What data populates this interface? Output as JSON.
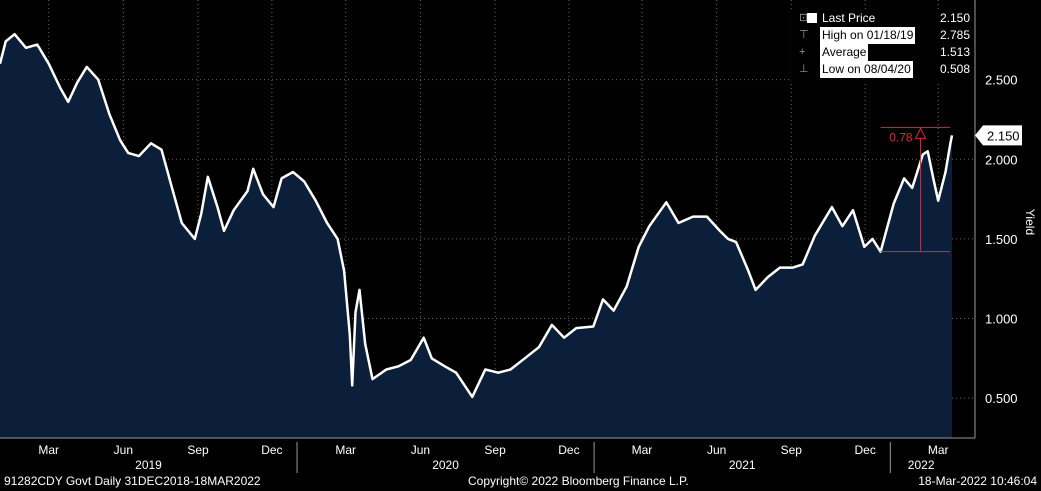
{
  "chart_data": {
    "type": "area",
    "ylabel": "Yield",
    "ylim": [
      0.25,
      3.0
    ],
    "yticks": [
      "0.500",
      "1.000",
      "1.500",
      "2.000",
      "2.500"
    ],
    "x_month_labels": [
      "Mar",
      "Jun",
      "Sep",
      "Dec",
      "Mar",
      "Jun",
      "Sep",
      "Dec",
      "Mar",
      "Jun",
      "Sep",
      "Dec",
      "Mar"
    ],
    "year_labels": [
      "2019",
      "2020",
      "2021",
      "2022"
    ],
    "x_start": "2018-12-31",
    "x_end": "2022-03-18",
    "series": [
      {
        "points": [
          [
            "2018-12-31",
            2.6
          ],
          [
            "2019-01-07",
            2.74
          ],
          [
            "2019-01-18",
            2.785
          ],
          [
            "2019-02-01",
            2.7
          ],
          [
            "2019-02-15",
            2.72
          ],
          [
            "2019-03-01",
            2.6
          ],
          [
            "2019-03-15",
            2.45
          ],
          [
            "2019-03-25",
            2.36
          ],
          [
            "2019-04-05",
            2.48
          ],
          [
            "2019-04-17",
            2.58
          ],
          [
            "2019-05-01",
            2.5
          ],
          [
            "2019-05-15",
            2.28
          ],
          [
            "2019-05-28",
            2.12
          ],
          [
            "2019-06-07",
            2.04
          ],
          [
            "2019-06-20",
            2.02
          ],
          [
            "2019-07-05",
            2.1
          ],
          [
            "2019-07-18",
            2.06
          ],
          [
            "2019-08-01",
            1.8
          ],
          [
            "2019-08-12",
            1.6
          ],
          [
            "2019-08-28",
            1.5
          ],
          [
            "2019-09-05",
            1.66
          ],
          [
            "2019-09-13",
            1.89
          ],
          [
            "2019-09-25",
            1.7
          ],
          [
            "2019-10-03",
            1.55
          ],
          [
            "2019-10-15",
            1.68
          ],
          [
            "2019-11-01",
            1.8
          ],
          [
            "2019-11-08",
            1.94
          ],
          [
            "2019-11-20",
            1.78
          ],
          [
            "2019-12-03",
            1.7
          ],
          [
            "2019-12-13",
            1.88
          ],
          [
            "2019-12-27",
            1.92
          ],
          [
            "2020-01-10",
            1.86
          ],
          [
            "2020-01-24",
            1.74
          ],
          [
            "2020-02-07",
            1.6
          ],
          [
            "2020-02-20",
            1.5
          ],
          [
            "2020-02-28",
            1.3
          ],
          [
            "2020-03-06",
            0.9
          ],
          [
            "2020-03-09",
            0.58
          ],
          [
            "2020-03-13",
            1.04
          ],
          [
            "2020-03-18",
            1.18
          ],
          [
            "2020-03-25",
            0.84
          ],
          [
            "2020-04-03",
            0.62
          ],
          [
            "2020-04-20",
            0.68
          ],
          [
            "2020-05-05",
            0.7
          ],
          [
            "2020-05-20",
            0.74
          ],
          [
            "2020-06-05",
            0.88
          ],
          [
            "2020-06-15",
            0.75
          ],
          [
            "2020-07-01",
            0.7
          ],
          [
            "2020-07-15",
            0.66
          ],
          [
            "2020-08-04",
            0.508
          ],
          [
            "2020-08-20",
            0.68
          ],
          [
            "2020-09-05",
            0.66
          ],
          [
            "2020-09-20",
            0.68
          ],
          [
            "2020-10-10",
            0.76
          ],
          [
            "2020-10-25",
            0.82
          ],
          [
            "2020-11-10",
            0.96
          ],
          [
            "2020-11-25",
            0.88
          ],
          [
            "2020-12-10",
            0.94
          ],
          [
            "2020-12-31",
            0.95
          ],
          [
            "2021-01-12",
            1.12
          ],
          [
            "2021-01-25",
            1.05
          ],
          [
            "2021-02-10",
            1.2
          ],
          [
            "2021-02-25",
            1.45
          ],
          [
            "2021-03-10",
            1.58
          ],
          [
            "2021-03-31",
            1.73
          ],
          [
            "2021-04-15",
            1.6
          ],
          [
            "2021-05-03",
            1.64
          ],
          [
            "2021-05-20",
            1.64
          ],
          [
            "2021-06-05",
            1.55
          ],
          [
            "2021-06-15",
            1.5
          ],
          [
            "2021-06-25",
            1.48
          ],
          [
            "2021-07-10",
            1.3
          ],
          [
            "2021-07-19",
            1.18
          ],
          [
            "2021-08-03",
            1.26
          ],
          [
            "2021-08-18",
            1.32
          ],
          [
            "2021-09-03",
            1.32
          ],
          [
            "2021-09-15",
            1.34
          ],
          [
            "2021-09-30",
            1.52
          ],
          [
            "2021-10-21",
            1.7
          ],
          [
            "2021-11-03",
            1.58
          ],
          [
            "2021-11-16",
            1.68
          ],
          [
            "2021-11-30",
            1.45
          ],
          [
            "2021-12-10",
            1.5
          ],
          [
            "2021-12-20",
            1.42
          ],
          [
            "2022-01-05",
            1.72
          ],
          [
            "2022-01-18",
            1.88
          ],
          [
            "2022-01-28",
            1.82
          ],
          [
            "2022-02-10",
            2.03
          ],
          [
            "2022-02-16",
            2.05
          ],
          [
            "2022-02-23",
            1.88
          ],
          [
            "2022-03-01",
            1.74
          ],
          [
            "2022-03-10",
            1.92
          ],
          [
            "2022-03-16",
            2.1
          ],
          [
            "2022-03-18",
            2.15
          ]
        ]
      }
    ],
    "last_price_tag": "2.150",
    "range_annotation": {
      "label": "0.78",
      "from_date": "2021-12-20",
      "low": 1.42,
      "high": 2.2
    },
    "legend": [
      {
        "label": "Last Price",
        "value": "2.150"
      },
      {
        "label": "High on 01/18/19",
        "value": "2.785"
      },
      {
        "label": "Average",
        "value": "1.513"
      },
      {
        "label": "Low on 08/04/20",
        "value": "0.508"
      }
    ]
  },
  "colors": {
    "area": "#0b1e3a",
    "line": "#ffffff",
    "grid": "#666666",
    "annotation": "#e0253b"
  },
  "footer": {
    "left": "91282CDY Govt  Daily 31DEC2018-18MAR2022",
    "center": "Copyright© 2022 Bloomberg Finance L.P.",
    "right": "18-Mar-2022 10:46:04"
  }
}
